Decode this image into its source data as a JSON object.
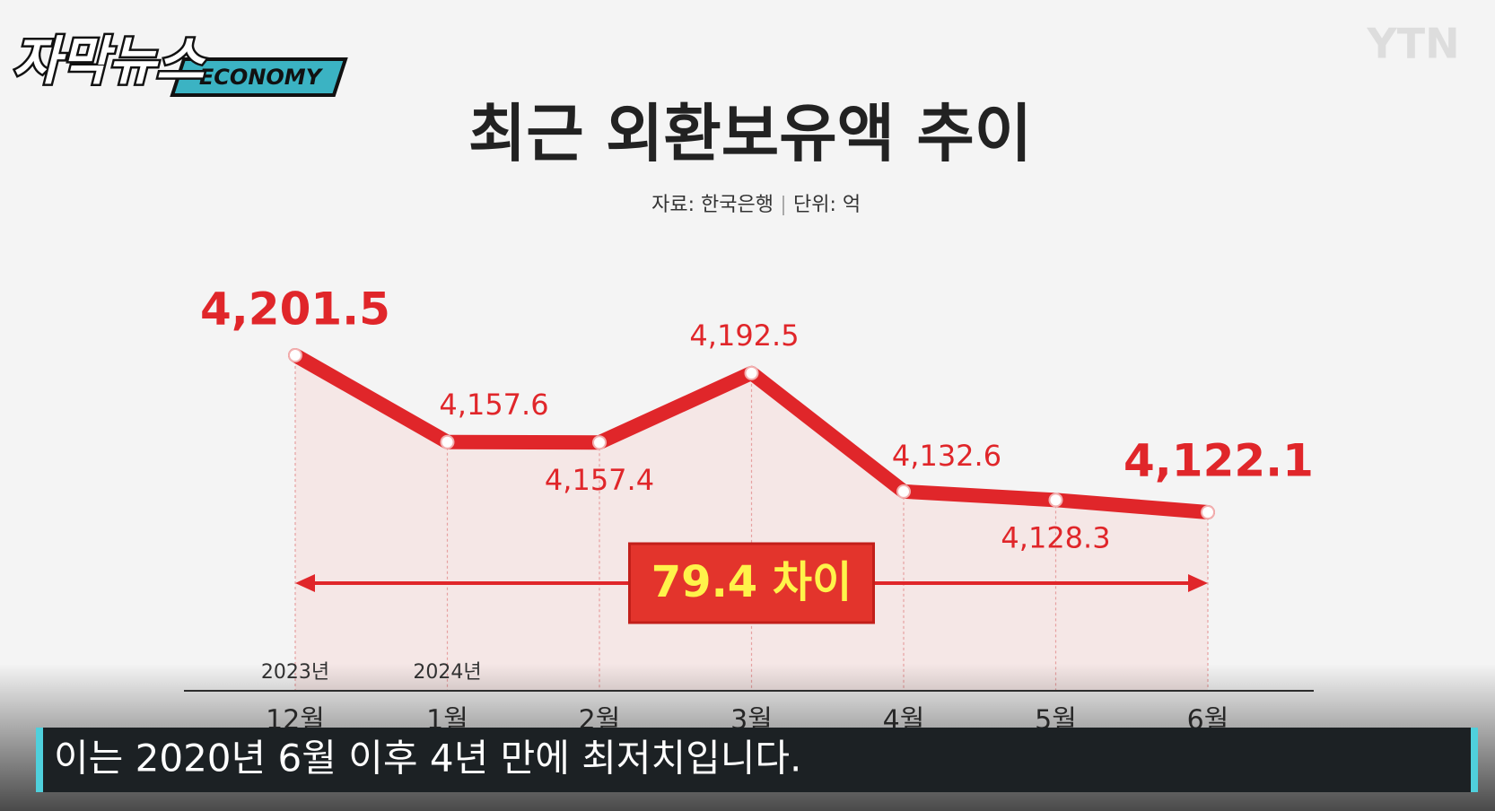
{
  "header": {
    "logo": "자막뉴스",
    "logo_tag": "ECONOMY",
    "broadcaster": "YTN"
  },
  "chart_data": {
    "type": "line",
    "title": "최근 외환보유액 추이",
    "source": "자료: 한국은행",
    "unit": "단위: 억",
    "categories": [
      "12월",
      "1월",
      "2월",
      "3월",
      "4월",
      "5월",
      "6월"
    ],
    "year_labels": [
      "2023년",
      "2024년",
      null,
      null,
      null,
      null,
      null
    ],
    "values": [
      4201.5,
      4157.6,
      4157.4,
      4192.5,
      4132.6,
      4128.3,
      4122.1
    ],
    "value_labels": [
      "4,201.5",
      "4,157.6",
      "4,157.4",
      "4,192.5",
      "4,132.6",
      "4,128.3",
      "4,122.1"
    ],
    "color": "#e0262a",
    "annotation": "79.4 차이"
  },
  "caption": "이는 2020년 6월 이후 4년 만에 최저치입니다."
}
